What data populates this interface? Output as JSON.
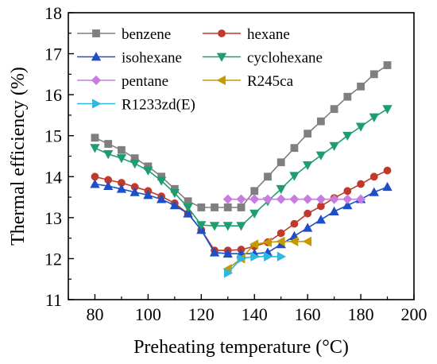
{
  "chart_data": {
    "type": "line",
    "xlabel": "Preheating temperature (°C)",
    "ylabel": "Thermal efficiency (%)",
    "xlim": [
      70,
      200
    ],
    "ylim": [
      11,
      18
    ],
    "xticks": [
      80,
      100,
      120,
      140,
      160,
      180,
      200
    ],
    "yticks": [
      11,
      12,
      13,
      14,
      15,
      16,
      17,
      18
    ],
    "xtick_labels": [
      "80",
      "100",
      "120",
      "140",
      "160",
      "180",
      "200"
    ],
    "ytick_labels": [
      "11",
      "12",
      "13",
      "14",
      "15",
      "16",
      "17",
      "18"
    ],
    "grid": false,
    "legend_position": "top-left",
    "series": [
      {
        "name": "benzene",
        "color": "#7f7f7f",
        "marker": "square",
        "points": [
          [
            80,
            14.95
          ],
          [
            85,
            14.8
          ],
          [
            90,
            14.65
          ],
          [
            95,
            14.45
          ],
          [
            100,
            14.25
          ],
          [
            105,
            14.0
          ],
          [
            110,
            13.7
          ],
          [
            115,
            13.4
          ],
          [
            120,
            13.25
          ],
          [
            125,
            13.25
          ],
          [
            130,
            13.25
          ],
          [
            135,
            13.25
          ],
          [
            140,
            13.65
          ],
          [
            145,
            14.0
          ],
          [
            150,
            14.35
          ],
          [
            155,
            14.7
          ],
          [
            160,
            15.05
          ],
          [
            165,
            15.35
          ],
          [
            170,
            15.65
          ],
          [
            175,
            15.95
          ],
          [
            180,
            16.2
          ],
          [
            185,
            16.5
          ],
          [
            190,
            16.72
          ]
        ]
      },
      {
        "name": "hexane",
        "color": "#c0392b",
        "marker": "circle",
        "points": [
          [
            80,
            14.0
          ],
          [
            85,
            13.92
          ],
          [
            90,
            13.85
          ],
          [
            95,
            13.75
          ],
          [
            100,
            13.65
          ],
          [
            105,
            13.52
          ],
          [
            110,
            13.35
          ],
          [
            115,
            13.1
          ],
          [
            120,
            12.7
          ],
          [
            125,
            12.2
          ],
          [
            130,
            12.2
          ],
          [
            135,
            12.22
          ],
          [
            140,
            12.3
          ],
          [
            145,
            12.4
          ],
          [
            150,
            12.62
          ],
          [
            155,
            12.85
          ],
          [
            160,
            13.1
          ],
          [
            165,
            13.28
          ],
          [
            170,
            13.48
          ],
          [
            175,
            13.65
          ],
          [
            180,
            13.82
          ],
          [
            185,
            14.0
          ],
          [
            190,
            14.15
          ]
        ]
      },
      {
        "name": "isohexane",
        "color": "#1f4fc6",
        "marker": "triangle-up",
        "points": [
          [
            80,
            13.82
          ],
          [
            85,
            13.77
          ],
          [
            90,
            13.7
          ],
          [
            95,
            13.62
          ],
          [
            100,
            13.55
          ],
          [
            105,
            13.45
          ],
          [
            110,
            13.3
          ],
          [
            115,
            13.1
          ],
          [
            120,
            12.7
          ],
          [
            125,
            12.15
          ],
          [
            130,
            12.12
          ],
          [
            135,
            12.12
          ],
          [
            140,
            12.12
          ],
          [
            145,
            12.15
          ],
          [
            150,
            12.35
          ],
          [
            155,
            12.55
          ],
          [
            160,
            12.75
          ],
          [
            165,
            12.95
          ],
          [
            170,
            13.15
          ],
          [
            175,
            13.3
          ],
          [
            180,
            13.45
          ],
          [
            185,
            13.62
          ],
          [
            190,
            13.75
          ]
        ]
      },
      {
        "name": "cyclohexane",
        "color": "#1e9e6e",
        "marker": "triangle-down",
        "points": [
          [
            80,
            14.7
          ],
          [
            85,
            14.55
          ],
          [
            90,
            14.45
          ],
          [
            95,
            14.32
          ],
          [
            100,
            14.15
          ],
          [
            105,
            13.9
          ],
          [
            110,
            13.6
          ],
          [
            115,
            13.25
          ],
          [
            120,
            12.82
          ],
          [
            125,
            12.8
          ],
          [
            130,
            12.8
          ],
          [
            135,
            12.8
          ],
          [
            140,
            13.1
          ],
          [
            145,
            13.4
          ],
          [
            150,
            13.7
          ],
          [
            155,
            14.02
          ],
          [
            160,
            14.28
          ],
          [
            165,
            14.52
          ],
          [
            170,
            14.75
          ],
          [
            175,
            15.0
          ],
          [
            180,
            15.22
          ],
          [
            185,
            15.45
          ],
          [
            190,
            15.65
          ]
        ]
      },
      {
        "name": "pentane",
        "color": "#c77ddf",
        "marker": "diamond",
        "points": [
          [
            130,
            13.45
          ],
          [
            135,
            13.45
          ],
          [
            140,
            13.45
          ],
          [
            145,
            13.45
          ],
          [
            150,
            13.45
          ],
          [
            155,
            13.45
          ],
          [
            160,
            13.45
          ],
          [
            165,
            13.45
          ],
          [
            170,
            13.45
          ],
          [
            175,
            13.45
          ],
          [
            180,
            13.45
          ]
        ]
      },
      {
        "name": "R245ca",
        "color": "#c49a00",
        "marker": "triangle-left",
        "points": [
          [
            130,
            11.75
          ],
          [
            135,
            12.0
          ],
          [
            140,
            12.35
          ],
          [
            145,
            12.4
          ],
          [
            150,
            12.42
          ],
          [
            155,
            12.42
          ],
          [
            160,
            12.42
          ]
        ]
      },
      {
        "name": "R1233zd(E)",
        "color": "#2fb7e0",
        "marker": "triangle-right",
        "points": [
          [
            130,
            11.65
          ],
          [
            135,
            12.0
          ],
          [
            140,
            12.05
          ],
          [
            145,
            12.05
          ],
          [
            150,
            12.05
          ]
        ]
      }
    ]
  }
}
